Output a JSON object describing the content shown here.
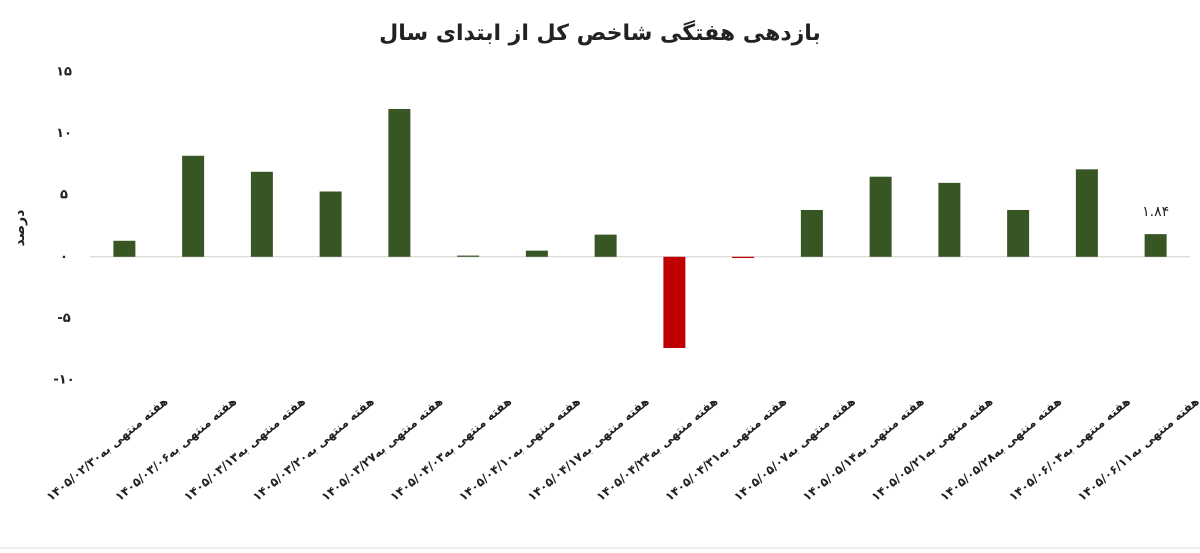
{
  "chart_data": {
    "type": "bar",
    "title": "بازدهی هفتگی شاخص کل از ابتدای سال",
    "y_label": "درصد",
    "categories": [
      "هفته منتهی به۱۴۰۵/۰۲/۳۰",
      "هفته منتهی به۱۴۰۵/۰۳/۰۶",
      "هفته منتهی به۱۴۰۵/۰۳/۱۳",
      "هفته منتهی به۱۴۰۵/۰۳/۲۰",
      "هفته منتهی به۱۴۰۵/۰۳/۲۷",
      "هفته منتهی به۱۴۰۵/۰۴/۰۳",
      "هفته منتهی به۱۴۰۵/۰۴/۱۰",
      "هفته منتهی به۱۴۰۵/۰۴/۱۷",
      "هفته منتهی به۱۴۰۵/۰۴/۲۴",
      "هفته منتهی به۱۴۰۵/۰۴/۳۱",
      "هفته منتهی به۱۴۰۵/۰۵/۰۷",
      "هفته منتهی به۱۴۰۵/۰۵/۱۴",
      "هفته منتهی به۱۴۰۵/۰۵/۲۱",
      "هفته منتهی به۱۴۰۵/۰۵/۲۸",
      "هفته منتهی به۱۴۰۵/۰۶/۰۴",
      "هفته منتهی به۱۴۰۵/۰۶/۱۱"
    ],
    "values": [
      1.3,
      8.2,
      6.9,
      5.3,
      12.0,
      0.1,
      0.5,
      1.8,
      -7.4,
      -0.1,
      3.8,
      6.5,
      6.0,
      3.8,
      7.1,
      1.84
    ],
    "value_labels": [
      null,
      null,
      null,
      null,
      null,
      null,
      null,
      null,
      null,
      null,
      null,
      null,
      null,
      null,
      null,
      "۱.۸۴"
    ],
    "color": "#375623",
    "negative_color": "#c00000",
    "ylim": [
      -10,
      15
    ],
    "yticks": [
      {
        "value": -10,
        "label": "-۱۰"
      },
      {
        "value": -5,
        "label": "-۵"
      },
      {
        "value": 0,
        "label": "۰"
      },
      {
        "value": 5,
        "label": "۵"
      },
      {
        "value": 10,
        "label": "۱۰"
      },
      {
        "value": 15,
        "label": "۱۵"
      }
    ]
  }
}
